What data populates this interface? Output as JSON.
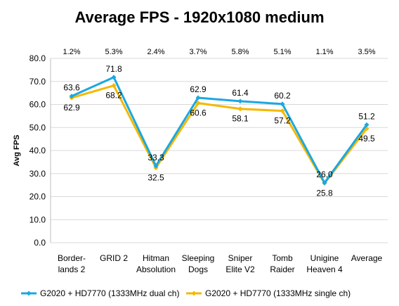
{
  "chart_data": {
    "type": "line",
    "title": "Average FPS - 1920x1080 medium",
    "ylabel": "Avg FPS",
    "xlabel": "",
    "ylim": [
      0,
      80
    ],
    "yticks": [
      "0.0",
      "10.0",
      "20.0",
      "30.0",
      "40.0",
      "50.0",
      "60.0",
      "70.0",
      "80.0"
    ],
    "grid": "horizontal",
    "legend_position": "bottom",
    "categories": [
      [
        "Border-",
        "lands 2"
      ],
      [
        "GRID 2"
      ],
      [
        "Hitman",
        "Absolution"
      ],
      [
        "Sleeping",
        "Dogs"
      ],
      [
        "Sniper",
        "Elite V2"
      ],
      [
        "Tomb",
        "Raider"
      ],
      [
        "Unigine",
        "Heaven 4"
      ],
      [
        "Average"
      ]
    ],
    "percent_labels": [
      "1.2%",
      "5.3%",
      "2.4%",
      "3.7%",
      "5.8%",
      "5.1%",
      "1.1%",
      "3.5%"
    ],
    "series": [
      {
        "name": "G2020 + HD7770 (1333MHz dual ch)",
        "color": "#1BA8E0",
        "values": [
          63.6,
          71.8,
          33.3,
          62.9,
          61.4,
          60.2,
          26.0,
          51.2
        ],
        "labels": [
          "63.6",
          "71.8",
          "33.3",
          "62.9",
          "61.4",
          "60.2",
          "26.0",
          "51.2"
        ]
      },
      {
        "name": "G2020 + HD7770 (1333MHz single ch)",
        "color": "#F5B800",
        "values": [
          62.9,
          68.2,
          32.5,
          60.6,
          58.1,
          57.2,
          25.8,
          49.5
        ],
        "labels": [
          "62.9",
          "68.2",
          "32.5",
          "60.6",
          "58.1",
          "57.2",
          "25.8",
          "49.5"
        ]
      }
    ]
  }
}
